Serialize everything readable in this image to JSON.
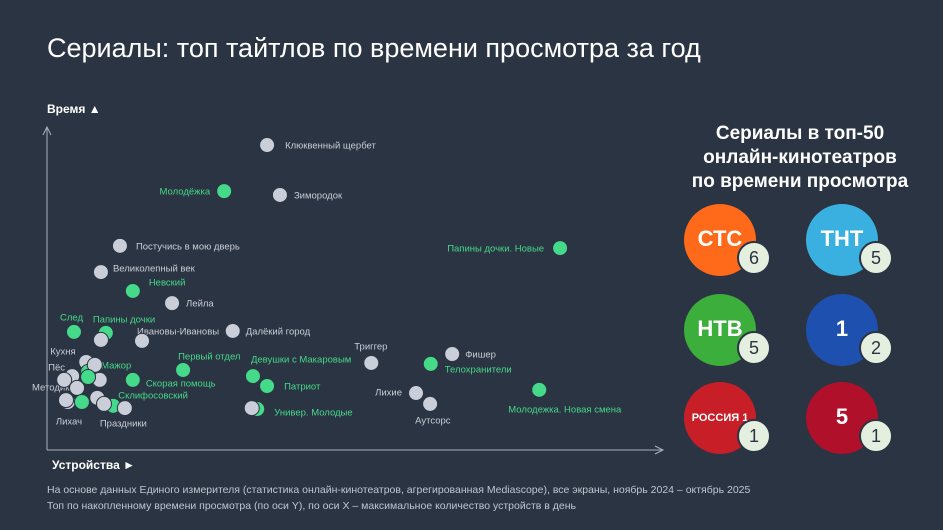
{
  "chart_data": {
    "type": "scatter",
    "title": "Сериалы: топ тайтлов по времени просмотра за год",
    "x_label": "Устройства ►",
    "y_label": "Время ▲",
    "xlim": [
      0,
      100
    ],
    "ylim": [
      0,
      100
    ],
    "labels": [
      "Клюквенный щербет",
      "Молодёжка",
      "Зимородок",
      "Постучись в мою дверь",
      "Папины дочки. Новые",
      "Великолепный век",
      "Невский",
      "Лейла",
      "След",
      "Папины дочки",
      "Ивановы-Ивановы",
      "Далёкий город",
      "Первый отдел",
      "Триггер",
      "Фишер",
      "Телохранители",
      "Кухня",
      "Мажор",
      "Пёс",
      "Скорая помощь",
      "Девушки с Макаровым",
      "Патриот",
      "Методика",
      "Склифосовский",
      "Лихие",
      "Аутсорс",
      "Молодежка. Новая смена",
      "Универ. Молодые",
      "Лихач",
      "Праздники",
      null,
      null,
      null,
      null,
      null,
      null,
      null,
      null,
      null,
      null
    ],
    "x": [
      35.9,
      28.9,
      38.0,
      11.9,
      83.7,
      8.8,
      14.0,
      20.4,
      4.4,
      9.6,
      15.5,
      30.3,
      22.2,
      52.9,
      66.1,
      62.6,
      6.4,
      6.7,
      4.1,
      14.0,
      33.6,
      35.9,
      4.9,
      10.8,
      60.2,
      62.5,
      80.3,
      34.3,
      3.4,
      12.7,
      7.8,
      8.6,
      3.1,
      5.7,
      8.2,
      9.3,
      8.8,
      33.4,
      2.8,
      6.7
    ],
    "values": [
      95.3,
      80.9,
      79.7,
      63.8,
      63.1,
      55.6,
      49.7,
      45.9,
      36.9,
      36.6,
      34.1,
      37.2,
      25.0,
      27.2,
      30.0,
      26.9,
      27.5,
      24.4,
      23.1,
      21.9,
      23.1,
      20.0,
      19.4,
      13.8,
      17.8,
      14.4,
      18.8,
      12.8,
      15.0,
      13.1,
      26.6,
      21.9,
      15.6,
      15.0,
      16.3,
      14.4,
      34.4,
      13.1,
      21.9,
      22.8
    ],
    "colors": [
      "#c9ced8",
      "#45d98a",
      "#c9ced8",
      "#c9ced8",
      "#45d98a",
      "#c9ced8",
      "#45d98a",
      "#c9ced8",
      "#45d98a",
      "#45d98a",
      "#c9ced8",
      "#c9ced8",
      "#45d98a",
      "#c9ced8",
      "#c9ced8",
      "#45d98a",
      "#c9ced8",
      "#45d98a",
      "#c9ced8",
      "#45d98a",
      "#45d98a",
      "#45d98a",
      "#c9ced8",
      "#45d98a",
      "#c9ced8",
      "#c9ced8",
      "#45d98a",
      "#45d98a",
      "#c9ced8",
      "#c9ced8",
      "#c9ced8",
      "#c9ced8",
      "#c9ced8",
      "#45d98a",
      "#c9ced8",
      "#c9ced8",
      "#c9ced8",
      "#c9ced8",
      "#c9ced8",
      "#45d98a"
    ]
  },
  "panel": {
    "title": [
      "Сериалы в топ-50",
      "онлайн-кинотеатров",
      "по времени просмотра"
    ],
    "channels": [
      {
        "logo": "СТС",
        "count": 6,
        "color": "#ff6a1a"
      },
      {
        "logo": "ТНТ",
        "count": 5,
        "color": "#3ab0e0"
      },
      {
        "logo": "НТВ",
        "count": 5,
        "color": "#3cae3c"
      },
      {
        "logo": "1",
        "count": 2,
        "color": "#1e50b0"
      },
      {
        "logo": "РОССИЯ 1",
        "count": 1,
        "color": "#c81e28"
      },
      {
        "logo": "5",
        "count": 1,
        "color": "#b0102a"
      }
    ]
  },
  "footnote": [
    "На основе данных Единого измерителя (статистика онлайн-кинотеатров, агрегированная Mediascope), все экраны, ноябрь 2024 – октябрь 2025",
    "Топ по накопленному времени просмотра (по оси Y), по оси X – максимальное количество устройств в день"
  ]
}
